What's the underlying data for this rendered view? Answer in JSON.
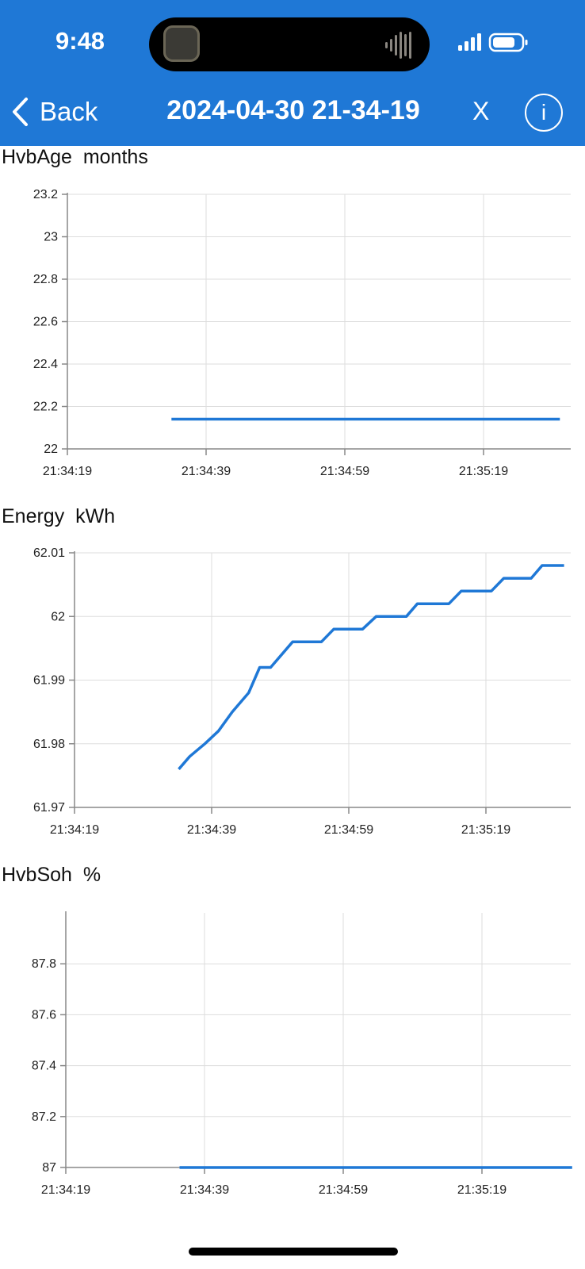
{
  "status_bar": {
    "time": "9:48"
  },
  "nav": {
    "back_label": "Back",
    "title": "2024-04-30 21-34-19",
    "close_label": "X",
    "info_label": "i"
  },
  "colors": {
    "header": "#1f78d6",
    "line": "#1f78d6",
    "grid": "#dddddd"
  },
  "chart_data": [
    {
      "type": "line",
      "title": "HvbAge  months",
      "x_ticks": [
        "21:34:19",
        "21:34:39",
        "21:34:59",
        "21:35:19"
      ],
      "x_range": [
        0,
        73
      ],
      "ylim": [
        22,
        23.2
      ],
      "y_ticks": [
        22,
        22.2,
        22.4,
        22.6,
        22.8,
        23,
        23.2
      ],
      "y_tick_labels": [
        "22",
        "22.2",
        "22.4",
        "22.6",
        "22.8",
        "23",
        "23.2"
      ],
      "grid": true,
      "series": [
        {
          "x": [
            15,
            71
          ],
          "y": [
            22.14,
            22.14
          ]
        }
      ]
    },
    {
      "type": "line",
      "title": "Energy  kWh",
      "x_ticks": [
        "21:34:19",
        "21:34:39",
        "21:34:59",
        "21:35:19"
      ],
      "x_range": [
        0,
        72
      ],
      "ylim": [
        61.97,
        62.01
      ],
      "y_ticks": [
        61.97,
        61.98,
        61.99,
        62,
        62.01
      ],
      "y_tick_labels": [
        "61.97",
        "61.98",
        "61.99",
        "62",
        "62.01"
      ],
      "grid": true,
      "series": [
        {
          "x": [
            15.2,
            16.8,
            19,
            21,
            23,
            25.4,
            27,
            28.6,
            31.8,
            36,
            37.8,
            42,
            44,
            48.4,
            50,
            54.6,
            56.4,
            60.8,
            62.6,
            66.6,
            68.2,
            71.4
          ],
          "y": [
            61.976,
            61.978,
            61.98,
            61.982,
            61.985,
            61.988,
            61.992,
            61.992,
            61.996,
            61.996,
            61.998,
            61.998,
            62.0,
            62.0,
            62.002,
            62.002,
            62.004,
            62.004,
            62.006,
            62.006,
            62.008,
            62.008
          ]
        }
      ]
    },
    {
      "type": "line",
      "title": "HvbSoh  %",
      "x_ticks": [
        "21:34:19",
        "21:34:39",
        "21:34:59",
        "21:35:19"
      ],
      "x_range": [
        0,
        73
      ],
      "ylim": [
        87,
        88
      ],
      "y_ticks": [
        87,
        87.2,
        87.4,
        87.6,
        87.8
      ],
      "y_tick_labels": [
        "87",
        "87.2",
        "87.4",
        "87.6",
        "87.8"
      ],
      "grid": true,
      "series": [
        {
          "x": [
            16.4,
            73
          ],
          "y": [
            87,
            87
          ]
        }
      ]
    }
  ]
}
